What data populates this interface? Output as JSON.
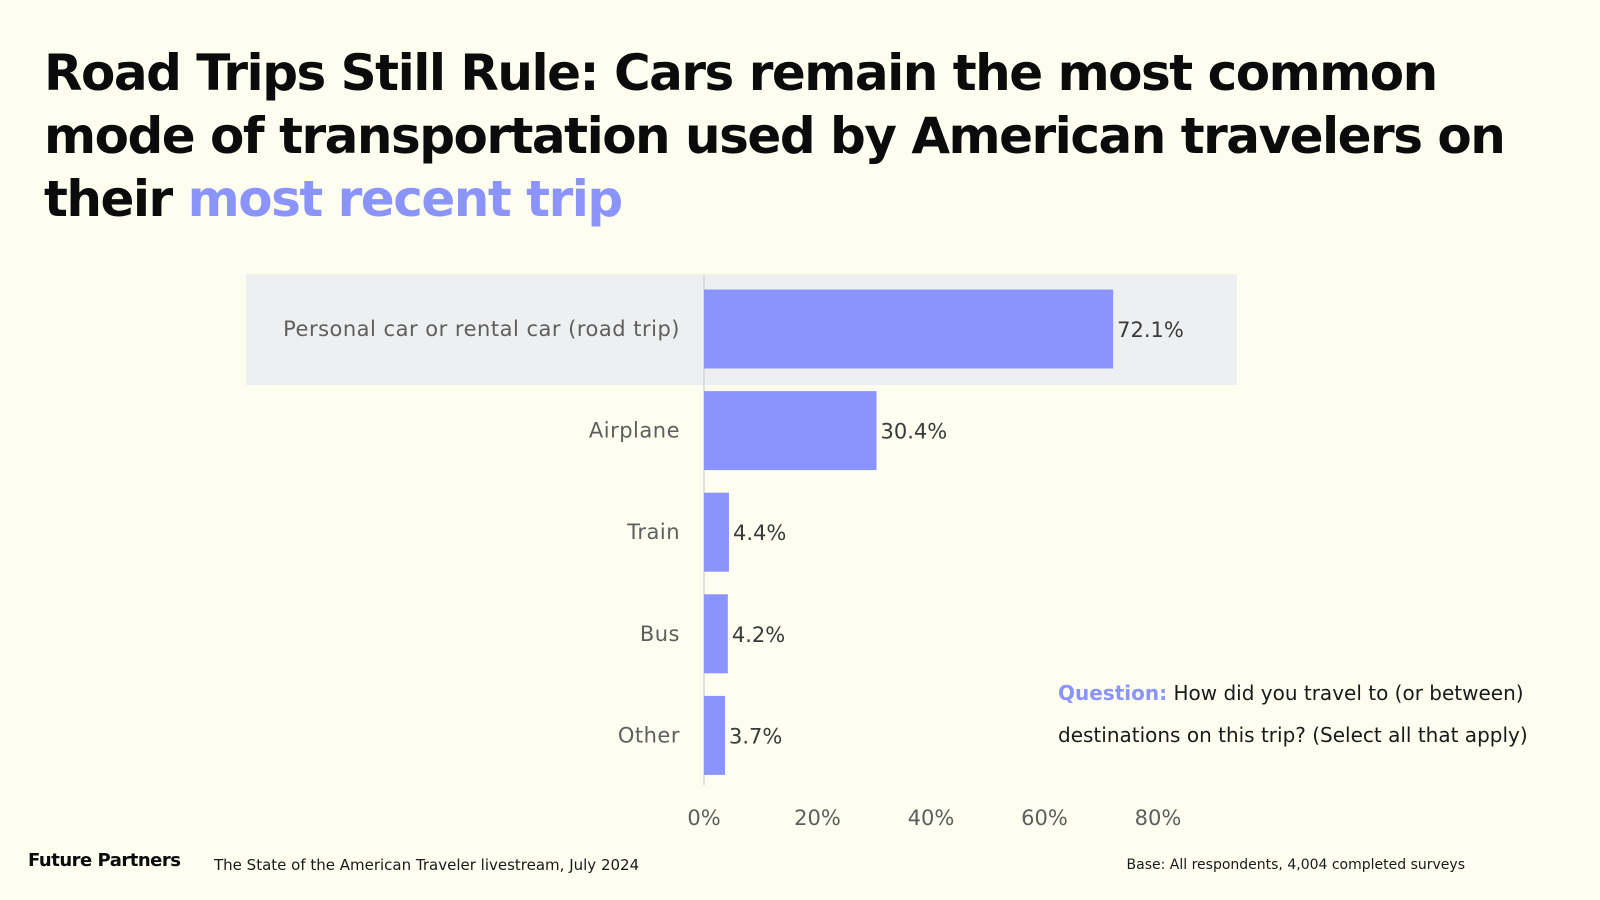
{
  "title": {
    "part1": "Road Trips Still Rule: Cars remain the most common mode of transportation used by American travelers on their ",
    "highlight": "most recent trip"
  },
  "colors": {
    "accent": "#8a94fb",
    "background": "#fdfdf0",
    "highlight_band": "#edeff0",
    "axis": "#d6d6d6"
  },
  "chart_data": {
    "type": "bar",
    "orientation": "horizontal",
    "categories": [
      "Personal car or rental car (road trip)",
      "Airplane",
      "Train",
      "Bus",
      "Other"
    ],
    "values": [
      72.1,
      30.4,
      4.4,
      4.2,
      3.7
    ],
    "value_labels": [
      "72.1%",
      "30.4%",
      "4.4%",
      "4.2%",
      "3.7%"
    ],
    "xlim": [
      0,
      80
    ],
    "ticks": [
      0,
      20,
      40,
      60,
      80
    ],
    "tick_labels": [
      "0%",
      "20%",
      "40%",
      "60%",
      "80%"
    ],
    "highlighted_category": "Personal car or rental car (road trip)",
    "grid": false
  },
  "question": {
    "label": "Question:",
    "text": " How did you travel to (or between) destinations on this trip? (Select all that apply)"
  },
  "footer": {
    "brand": "Future Partners",
    "source": "The State of the American Traveler livestream, July 2024",
    "base": "Base: All respondents, 4,004 completed surveys"
  }
}
